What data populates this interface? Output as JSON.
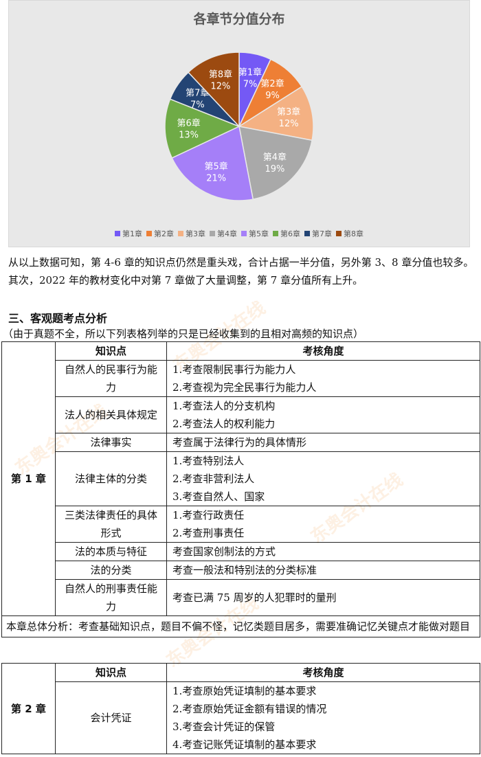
{
  "chart_data": {
    "type": "pie",
    "title": "各章节分值分布",
    "categories": [
      "第1章",
      "第2章",
      "第3章",
      "第4章",
      "第5章",
      "第6章",
      "第7章",
      "第8章"
    ],
    "values": [
      7,
      9,
      12,
      19,
      21,
      13,
      7,
      12
    ],
    "labels": [
      "7%",
      "9%",
      "12%",
      "19%",
      "21%",
      "13%",
      "7%",
      "12%"
    ],
    "colors": [
      "#7459f5",
      "#ee7f35",
      "#f4b183",
      "#a9a9a9",
      "#a57ff8",
      "#6fab46",
      "#234474",
      "#9c4a10"
    ],
    "label_colors": [
      "#ffffff",
      "#ffffff",
      "#ffffff",
      "#ffffff",
      "#ffffff",
      "#ffffff",
      "#ffffff",
      "#ffffff"
    ],
    "start": "top",
    "direction": "clockwise",
    "legend_position": "bottom"
  },
  "paragraph": "从以上数据可知，第 4-6 章的知识点仍然是重头戏，合计占据一半分值，另外第 3、8 章分值也较多。其次，2022 年的教材变化中对第 7 章做了大量调整，第 7 章分值所有上升。",
  "section_title": "三、客观题考点分析",
  "section_note": "（由于真题不全，所以下列表格列举的只是已经收集到的且相对高频的知识点）",
  "watermark": "东奥会计在线 www.dongao.com",
  "tables": [
    {
      "chapter": "第 1 章",
      "headers": [
        "知识点",
        "考核角度"
      ],
      "rows": [
        {
          "point": "自然人的民事行为能力",
          "angles": [
            "1.考查限制民事行为能力人",
            "2.考查视为完全民事行为能力人"
          ]
        },
        {
          "point": "法人的相关具体规定",
          "angles": [
            "1.考查法人的分支机构",
            "2.考查法人的权利能力"
          ]
        },
        {
          "point": "法律事实",
          "angles": [
            "考查属于法律行为的具体情形"
          ]
        },
        {
          "point": "法律主体的分类",
          "angles": [
            "1.考查特别法人",
            "2.考查非营利法人",
            "3.考查自然人、国家"
          ]
        },
        {
          "point": "三类法律责任的具体形式",
          "angles": [
            "1.考查行政责任",
            "2.考查刑事责任"
          ]
        },
        {
          "point": "法的本质与特征",
          "angles": [
            "考查国家创制法的方式"
          ]
        },
        {
          "point": "法的分类",
          "angles": [
            "考查一般法和特别法的分类标准"
          ]
        },
        {
          "point": "自然人的刑事责任能力",
          "angles": [
            "考查已满 75 周岁的人犯罪时的量刑"
          ]
        }
      ],
      "summary": "本章总体分析：考查基础知识点，题目不偏不怪，记忆类题目居多，需要准确记忆关键点才能做对题目"
    },
    {
      "chapter": "第 2 章",
      "headers": [
        "知识点",
        "考核角度"
      ],
      "rows": [
        {
          "point": "会计凭证",
          "angles": [
            "1.考查原始凭证填制的基本要求",
            "2.考查原始凭证金额有错误的情况",
            "3.考查会计凭证的保管",
            "4.考查记账凭证填制的基本要求"
          ]
        }
      ]
    }
  ]
}
